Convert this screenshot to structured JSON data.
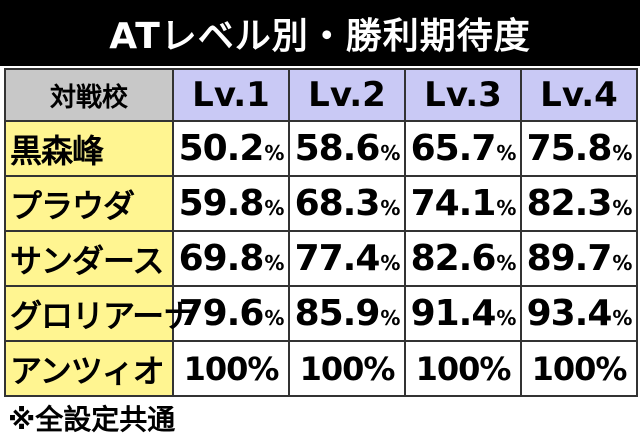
{
  "title": "ATレベル別・勝利期待度",
  "table": {
    "corner_label": "対戦校",
    "levels": [
      "Lv.1",
      "Lv.2",
      "Lv.3",
      "Lv.4"
    ],
    "rows": [
      {
        "school": "黒森峰",
        "values": [
          "50.2",
          "58.6",
          "65.7",
          "75.8"
        ]
      },
      {
        "school": "プラウダ",
        "values": [
          "59.8",
          "68.3",
          "74.1",
          "82.3"
        ]
      },
      {
        "school": "サンダース",
        "values": [
          "69.8",
          "77.4",
          "82.6",
          "89.7"
        ]
      },
      {
        "school": "グロリアーナ",
        "values": [
          "79.6",
          "85.9",
          "91.4",
          "93.4"
        ]
      },
      {
        "school": "アンツィオ",
        "values": [
          "100%",
          "100%",
          "100%",
          "100%"
        ]
      }
    ],
    "percent_sign": "%"
  },
  "footnote": "※全設定共通",
  "colors": {
    "title_bg": "#000000",
    "header_corner_bg": "#c8c8c8",
    "header_level_bg": "#c9c9f5",
    "school_bg": "#fff591",
    "cell_bg": "#ffffff"
  }
}
